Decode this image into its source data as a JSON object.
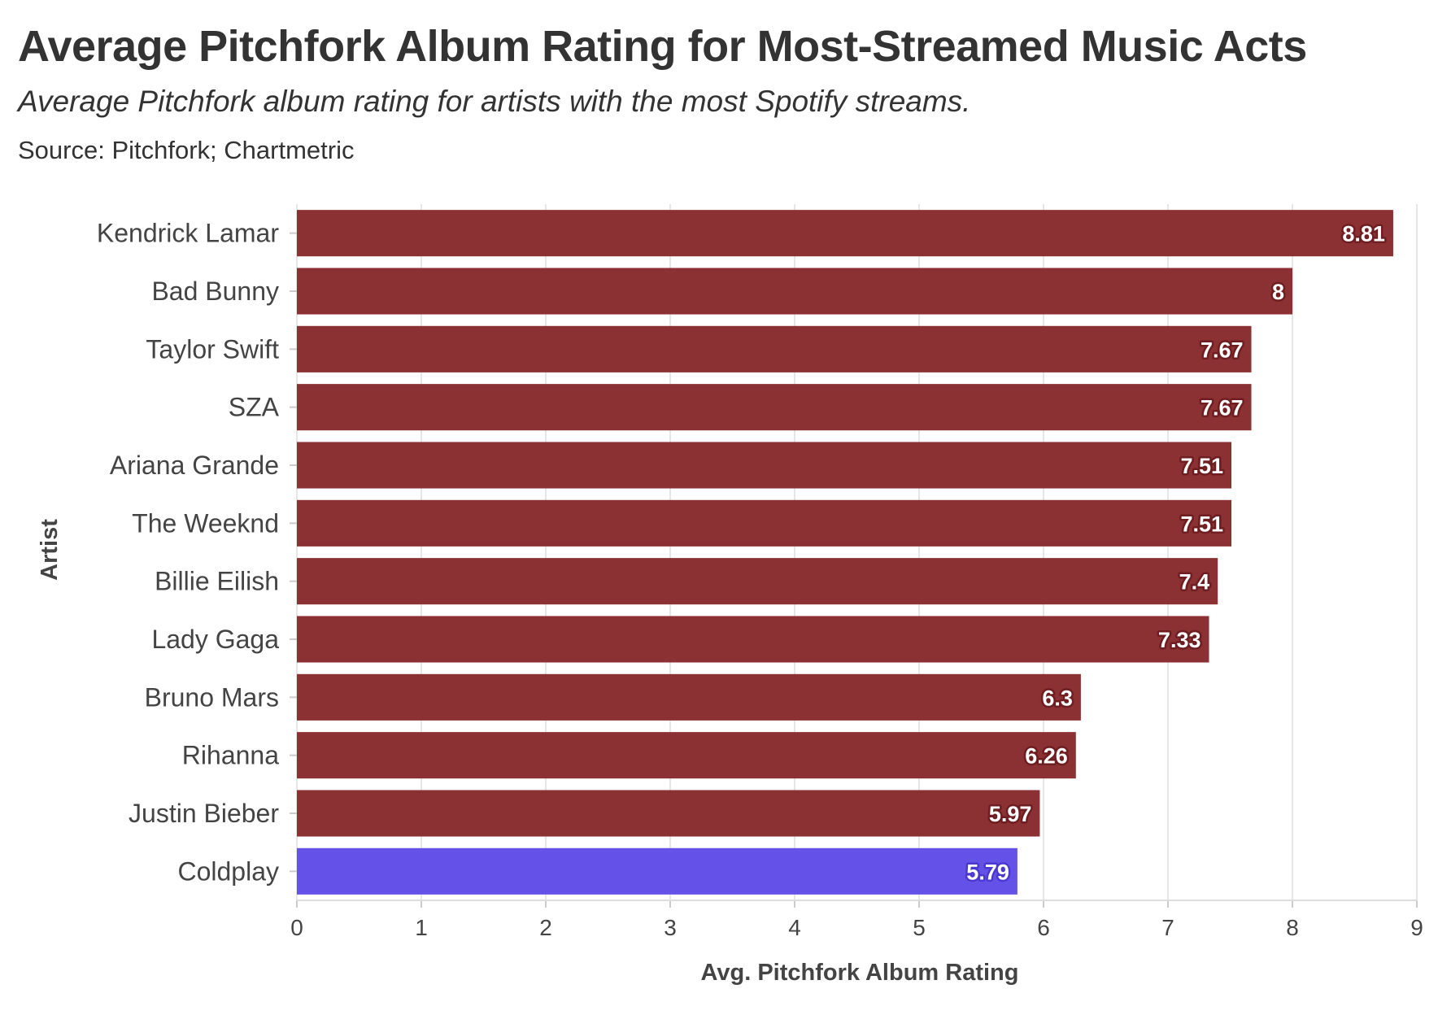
{
  "title": "Average Pitchfork Album Rating for Most-Streamed Music Acts",
  "subtitle": "Average Pitchfork album rating for artists with the most Spotify streams.",
  "source": "Source: Pitchfork; Chartmetric",
  "colors": {
    "bar_default": "#8b3033",
    "bar_highlight": "#6452e8",
    "label_outline_default": "#6e1d20",
    "label_outline_highlight": "#4a38d0",
    "grid": "#e6e6e6",
    "text": "#333333"
  },
  "chart_data": {
    "type": "bar",
    "orientation": "horizontal",
    "categories": [
      "Kendrick Lamar",
      "Bad Bunny",
      "Taylor Swift",
      "SZA",
      "Ariana Grande",
      "The Weeknd",
      "Billie Eilish",
      "Lady Gaga",
      "Bruno Mars",
      "Rihanna",
      "Justin Bieber",
      "Coldplay"
    ],
    "values": [
      8.81,
      8,
      7.67,
      7.67,
      7.51,
      7.51,
      7.4,
      7.33,
      6.3,
      6.26,
      5.97,
      5.79
    ],
    "value_labels": [
      "8.81",
      "8",
      "7.67",
      "7.67",
      "7.51",
      "7.51",
      "7.4",
      "7.33",
      "6.3",
      "6.26",
      "5.97",
      "5.79"
    ],
    "highlight": [
      "Coldplay"
    ],
    "xlabel": "Avg. Pitchfork Album Rating",
    "ylabel": "Artist",
    "xlim": [
      0,
      9
    ],
    "xticks": [
      0,
      1,
      2,
      3,
      4,
      5,
      6,
      7,
      8,
      9
    ],
    "xtick_labels": [
      "0",
      "1",
      "2",
      "3",
      "4",
      "5",
      "6",
      "7",
      "8",
      "9"
    ],
    "grid": true,
    "legend": "none"
  }
}
